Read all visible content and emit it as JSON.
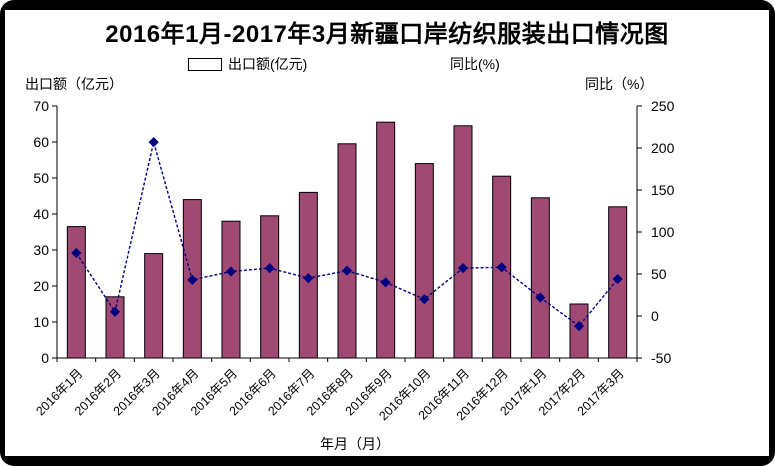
{
  "title": "2016年1月-2017年3月新疆口岸纺织服装出口情况图",
  "legend": {
    "bar_label": "出口额(亿元)",
    "line_label": "同比(%)"
  },
  "axis_headers": {
    "left": "出口额（亿元）",
    "right": "同比（%）",
    "x": "年月（月）"
  },
  "colors": {
    "bar_fill": "#A04973",
    "bar_border": "#000000",
    "line": "#000080",
    "marker": "#000080",
    "axis": "#000000",
    "frame": "#000000",
    "background": "#FFFFFF"
  },
  "chart_data": {
    "type": "bar",
    "subtype": "bar+line dual axis",
    "categories": [
      "2016年1月",
      "2016年2月",
      "2016年3月",
      "2016年4月",
      "2016年5月",
      "2016年6月",
      "2016年7月",
      "2016年8月",
      "2016年9月",
      "2016年10月",
      "2016年11月",
      "2016年12月",
      "2017年1月",
      "2017年2月",
      "2017年3月"
    ],
    "series": [
      {
        "name": "出口额(亿元)",
        "type": "bar",
        "axis": "left",
        "color": "#A04973",
        "values": [
          36.5,
          17,
          29,
          44,
          38,
          39.5,
          46,
          59.5,
          65.5,
          54,
          64.5,
          50.5,
          44.5,
          15,
          42
        ]
      },
      {
        "name": "同比(%)",
        "type": "line",
        "axis": "right",
        "color": "#000080",
        "marker": "diamond",
        "values": [
          75,
          5,
          207,
          43,
          53,
          57,
          45,
          54,
          40,
          20,
          57,
          58,
          22,
          -12,
          44
        ]
      }
    ],
    "title": "2016年1月-2017年3月新疆口岸纺织服装出口情况图",
    "xlabel": "年月（月）",
    "left_axis": {
      "label": "出口额（亿元）",
      "min": 0,
      "max": 70,
      "ticks": [
        0,
        10,
        20,
        30,
        40,
        50,
        60,
        70
      ]
    },
    "right_axis": {
      "label": "同比（%）",
      "min": -50,
      "max": 250,
      "ticks": [
        -50,
        0,
        50,
        100,
        150,
        200,
        250
      ]
    },
    "grid": false,
    "legend_position": "top"
  }
}
